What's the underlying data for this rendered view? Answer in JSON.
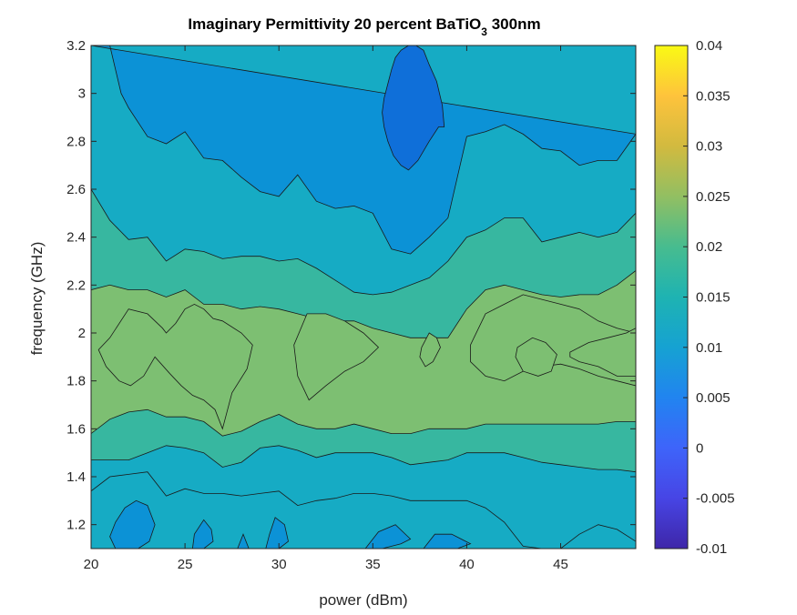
{
  "chart_data": {
    "type": "heatmap",
    "title": "Imaginary Permittivity 20 percent BaTiO",
    "title_sub": "3",
    "title_tail": " 300nm",
    "xlabel": "power (dBm)",
    "ylabel": "frequency (GHz)",
    "xlim": [
      20,
      49
    ],
    "ylim": [
      1.1,
      3.2
    ],
    "xticks": [
      "20",
      "25",
      "30",
      "35",
      "40",
      "45"
    ],
    "yticks": [
      "1.2",
      "1.4",
      "1.6",
      "1.8",
      "2",
      "2.2",
      "2.4",
      "2.6",
      "2.8",
      "3",
      "3.2"
    ],
    "colorbar": {
      "range": [
        -0.01,
        0.04
      ],
      "ticks": [
        "-0.01",
        "-0.005",
        "0",
        "0.005",
        "0.01",
        "0.015",
        "0.02",
        "0.025",
        "0.03",
        "0.035",
        "0.04"
      ],
      "colormap": [
        "#3e26a8",
        "#4745e5",
        "#3e64fa",
        "#2184f0",
        "#16a2d2",
        "#1eb3b2",
        "#47bc8f",
        "#92bf62",
        "#d2ba3f",
        "#fec33c",
        "#f9fa14"
      ]
    },
    "contour_levels": [
      -0.005,
      0,
      0.005,
      0.01,
      0.015
    ],
    "level_colors": [
      "#3643cf",
      "#0f6fd9",
      "#0c92d6",
      "#16abc4",
      "#37b7a0",
      "#7dbf72"
    ],
    "boundaries": [
      {
        "level": 0.005,
        "x": [
          20,
          21,
          22,
          23,
          24,
          25,
          26,
          27,
          28,
          29,
          30,
          31,
          32,
          33,
          34,
          35,
          36,
          37,
          38,
          39,
          40,
          41,
          42,
          43,
          44,
          45,
          46,
          47,
          48,
          49
        ],
        "y": [
          1.1,
          1.1,
          1.1,
          1.1,
          1.1,
          1.1,
          1.1,
          1.1,
          1.1,
          1.1,
          1.1,
          1.1,
          1.1,
          1.1,
          1.1,
          1.1,
          1.1,
          1.1,
          1.1,
          1.1,
          1.1,
          1.1,
          1.1,
          1.1,
          1.1,
          1.1,
          1.1,
          1.1,
          1.1,
          1.1
        ]
      },
      {
        "level": 0.005,
        "x": [
          20,
          21,
          22,
          23,
          24,
          25,
          26,
          27,
          28,
          29,
          30,
          31,
          32,
          33,
          34,
          35,
          36,
          37,
          38,
          39,
          40,
          41,
          42,
          43,
          44,
          45,
          46,
          47,
          48,
          49
        ],
        "y": [
          1.34,
          1.4,
          1.41,
          1.42,
          1.32,
          1.35,
          1.33,
          1.33,
          1.32,
          1.33,
          1.34,
          1.28,
          1.3,
          1.31,
          1.33,
          1.33,
          1.32,
          1.3,
          1.3,
          1.3,
          1.3,
          1.27,
          1.21,
          1.11,
          1.1,
          1.1,
          1.16,
          1.2,
          1.18,
          1.13
        ]
      },
      {
        "level": 0.01,
        "x": [
          20,
          21,
          22,
          23,
          24,
          25,
          26,
          27,
          28,
          29,
          30,
          31,
          32,
          33,
          34,
          35,
          36,
          37,
          38,
          39,
          40,
          41,
          42,
          43,
          44,
          45,
          46,
          47,
          48,
          49
        ],
        "y": [
          1.47,
          1.47,
          1.47,
          1.5,
          1.53,
          1.52,
          1.5,
          1.44,
          1.46,
          1.52,
          1.53,
          1.51,
          1.48,
          1.5,
          1.5,
          1.5,
          1.48,
          1.45,
          1.46,
          1.47,
          1.5,
          1.5,
          1.5,
          1.48,
          1.46,
          1.45,
          1.44,
          1.43,
          1.43,
          1.42
        ]
      },
      {
        "level": 0.015,
        "x": [
          20,
          21,
          22,
          23,
          24,
          25,
          26,
          27,
          28,
          29,
          30,
          31,
          32,
          33,
          34,
          35,
          36,
          37,
          38,
          39,
          40,
          41,
          42,
          43,
          44,
          45,
          46,
          47,
          48,
          49
        ],
        "y": [
          1.58,
          1.64,
          1.67,
          1.68,
          1.65,
          1.65,
          1.63,
          1.57,
          1.59,
          1.63,
          1.66,
          1.62,
          1.6,
          1.6,
          1.62,
          1.6,
          1.58,
          1.58,
          1.6,
          1.6,
          1.6,
          1.62,
          1.62,
          1.62,
          1.62,
          1.62,
          1.62,
          1.62,
          1.63,
          1.63
        ]
      },
      {
        "level": 0.015,
        "x": [
          20,
          21,
          22,
          23,
          24,
          25,
          26,
          27,
          28,
          29,
          30,
          31,
          32,
          33,
          34,
          35,
          36,
          37,
          38,
          39,
          40,
          41,
          42,
          43,
          44,
          45,
          46,
          47,
          48,
          49
        ],
        "y": [
          2.18,
          2.2,
          2.18,
          2.18,
          2.15,
          2.18,
          2.12,
          2.12,
          2.1,
          2.11,
          2.1,
          2.08,
          2.06,
          2.05,
          2.05,
          2.02,
          2.0,
          1.98,
          1.98,
          1.98,
          2.1,
          2.18,
          2.2,
          2.18,
          2.16,
          2.15,
          2.16,
          2.16,
          2.2,
          2.26
        ]
      },
      {
        "level": 0.01,
        "x": [
          20,
          21,
          22,
          23,
          24,
          25,
          26,
          27,
          28,
          29,
          30,
          31,
          32,
          33,
          34,
          35,
          36,
          37,
          38,
          39,
          40,
          41,
          42,
          43,
          44,
          45,
          46,
          47,
          48,
          49
        ],
        "y": [
          2.6,
          2.47,
          2.39,
          2.4,
          2.3,
          2.35,
          2.34,
          2.31,
          2.32,
          2.32,
          2.3,
          2.31,
          2.27,
          2.22,
          2.17,
          2.16,
          2.17,
          2.2,
          2.23,
          2.3,
          2.4,
          2.43,
          2.48,
          2.48,
          2.38,
          2.4,
          2.42,
          2.4,
          2.42,
          2.5
        ]
      },
      {
        "level": 0.005,
        "x": [
          20,
          21,
          22,
          23,
          24,
          25,
          26,
          27,
          28,
          29,
          30,
          31,
          32,
          33,
          34,
          35,
          36,
          37,
          38,
          39,
          40,
          41,
          42,
          43,
          44,
          45,
          46,
          47,
          48,
          49
        ],
        "y": [
          3.2,
          3.2,
          3.2,
          3.2,
          3.2,
          3.2,
          3.2,
          3.2,
          3.2,
          3.2,
          3.2,
          3.2,
          3.2,
          3.2,
          3.2,
          3.2,
          3.2,
          3.2,
          3.2,
          3.2,
          3.2,
          3.2,
          3.2,
          3.2,
          3.2,
          3.2,
          3.2,
          3.2,
          3.2,
          3.2
        ]
      }
    ],
    "regions": [
      {
        "level": 0,
        "x": [
          21.8,
          22.5,
          23.1,
          23.4,
          23.0,
          22.4,
          21.8,
          21.3,
          21.0,
          21.3
        ],
        "y": [
          1.1,
          1.1,
          1.13,
          1.2,
          1.28,
          1.3,
          1.27,
          1.21,
          1.15,
          1.1
        ]
      },
      {
        "level": 0,
        "x": [
          25.4,
          26.0,
          26.5,
          26.4,
          26.0,
          25.5
        ],
        "y": [
          1.1,
          1.1,
          1.13,
          1.18,
          1.22,
          1.16
        ]
      },
      {
        "level": 0,
        "x": [
          27.8,
          28.1,
          28.4,
          28.2
        ],
        "y": [
          1.1,
          1.16,
          1.1,
          1.1
        ]
      },
      {
        "level": 0,
        "x": [
          29.3,
          30.0,
          30.5,
          30.3,
          29.8,
          29.5
        ],
        "y": [
          1.1,
          1.1,
          1.13,
          1.2,
          1.23,
          1.16
        ]
      },
      {
        "level": 0,
        "x": [
          34.6,
          35.5,
          36.5,
          37.0,
          36.2,
          35.3
        ],
        "y": [
          1.1,
          1.1,
          1.12,
          1.14,
          1.2,
          1.17
        ]
      },
      {
        "level": 0,
        "x": [
          37.7,
          38.5,
          39.5,
          40.2,
          39.2,
          38.3
        ],
        "y": [
          1.1,
          1.1,
          1.1,
          1.12,
          1.16,
          1.16
        ]
      },
      {
        "level": 0,
        "x": [
          20.0,
          21.0,
          21.6,
          22.0,
          23.0,
          24.0,
          25.0,
          26.0,
          27.0,
          28.0,
          29.0,
          30.0,
          31.0,
          32.0,
          33.0,
          34.0,
          35.0,
          36.0,
          37.0,
          38.0,
          39.0,
          40.0,
          41.0,
          42.0,
          43.0,
          44.0,
          45.0,
          46.0,
          47.0,
          48.0,
          49.0
        ],
        "y": [
          3.2,
          3.2,
          3.0,
          2.94,
          2.82,
          2.79,
          2.84,
          2.73,
          2.72,
          2.65,
          2.59,
          2.57,
          2.66,
          2.55,
          2.52,
          2.53,
          2.5,
          2.35,
          2.33,
          2.4,
          2.48,
          2.82,
          2.84,
          2.87,
          2.83,
          2.77,
          2.76,
          2.7,
          2.72,
          2.72,
          2.83
        ]
      },
      {
        "level": -0.005,
        "x": [
          36.9,
          37.4,
          38.0,
          38.5,
          38.8,
          38.7,
          38.4,
          38.0,
          37.7,
          37.3,
          36.9,
          36.5,
          36.2,
          36.0,
          35.8,
          35.6,
          35.5,
          35.6,
          35.8,
          36.1,
          36.5
        ],
        "y": [
          2.68,
          2.72,
          2.8,
          2.86,
          2.86,
          2.95,
          3.05,
          3.12,
          3.18,
          3.2,
          3.2,
          3.18,
          3.15,
          3.1,
          3.04,
          2.98,
          2.92,
          2.86,
          2.8,
          2.74,
          2.7
        ]
      },
      {
        "level": 0.02,
        "x": [
          20.4,
          21.0,
          22.0,
          23.0,
          23.8,
          24.0,
          24.5,
          25.0,
          25.5,
          26.0,
          26.5,
          27.0,
          28.0,
          28.6,
          28.3,
          27.5,
          27.0,
          26.6,
          26.0,
          25.4,
          24.8,
          24.2,
          23.4,
          22.8,
          22.1,
          21.5,
          20.8
        ],
        "y": [
          1.93,
          1.98,
          2.1,
          2.08,
          2.02,
          2.0,
          2.04,
          2.1,
          2.12,
          2.1,
          2.06,
          2.05,
          2.0,
          1.95,
          1.85,
          1.75,
          1.6,
          1.68,
          1.72,
          1.74,
          1.78,
          1.83,
          1.9,
          1.82,
          1.78,
          1.8,
          1.86
        ]
      },
      {
        "level": 0.02,
        "x": [
          30.8,
          31.5,
          32.5,
          33.5,
          34.5,
          35.3,
          34.5,
          33.5,
          32.5,
          31.6,
          31.0
        ],
        "y": [
          1.95,
          2.08,
          2.08,
          2.05,
          2.0,
          1.94,
          1.88,
          1.84,
          1.78,
          1.72,
          1.82
        ]
      },
      {
        "level": 0.02,
        "x": [
          37.6,
          38.0,
          38.4,
          38.6,
          38.2,
          37.8,
          37.5
        ],
        "y": [
          1.94,
          2.0,
          1.98,
          1.94,
          1.88,
          1.86,
          1.9
        ]
      },
      {
        "level": 0.02,
        "x": [
          40.2,
          41.0,
          42.0,
          43.0,
          44.0,
          45.0,
          46.0,
          47.0,
          48.0,
          49.0,
          49.0,
          48.0,
          47.0,
          46.0,
          45.0,
          44.0,
          43.0,
          42.0,
          41.0,
          40.2
        ],
        "y": [
          1.95,
          2.08,
          2.12,
          2.16,
          2.14,
          2.12,
          2.1,
          2.05,
          2.02,
          2.0,
          1.78,
          1.8,
          1.82,
          1.85,
          1.87,
          1.86,
          1.84,
          1.8,
          1.82,
          1.88
        ]
      },
      {
        "level": 0.02,
        "x": [
          42.7,
          43.5,
          44.2,
          44.8,
          44.5,
          43.8,
          43.0,
          42.6
        ],
        "y": [
          1.94,
          1.98,
          1.96,
          1.91,
          1.84,
          1.82,
          1.84,
          1.9
        ]
      },
      {
        "level": 0.02,
        "x": [
          45.5,
          46.5,
          47.5,
          48.5,
          49.0,
          49.0,
          48.0,
          47.0,
          46.0,
          45.5
        ],
        "y": [
          1.92,
          1.96,
          1.98,
          2.0,
          2.02,
          1.82,
          1.82,
          1.86,
          1.88,
          1.9
        ]
      }
    ]
  }
}
